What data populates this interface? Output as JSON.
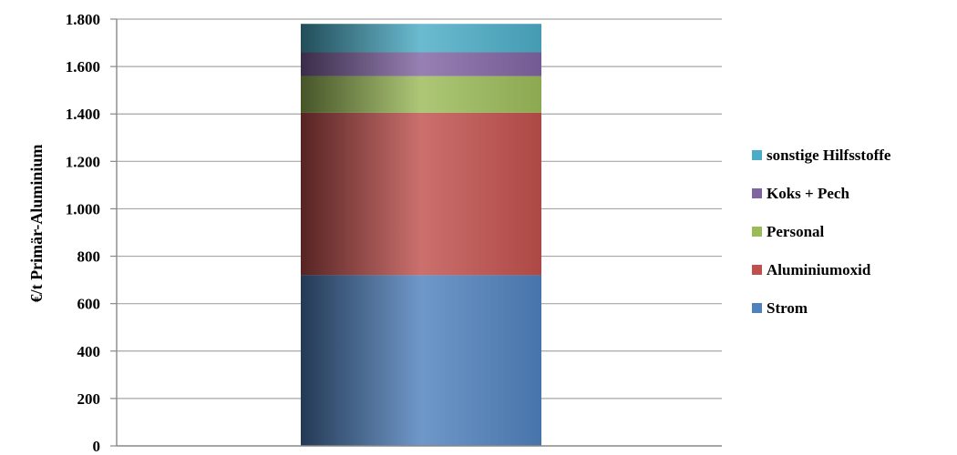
{
  "chart_data": {
    "type": "bar",
    "stacked": true,
    "title": "",
    "xlabel": "",
    "ylabel": "€/t Primär-Aluminium",
    "ylim": [
      0,
      1800
    ],
    "yticks": [
      0,
      200,
      400,
      600,
      800,
      1000,
      1200,
      1400,
      1600,
      1800
    ],
    "ytick_labels": [
      "0",
      "200",
      "400",
      "600",
      "800",
      "1.000",
      "1.200",
      "1.400",
      "1.600",
      "1.800"
    ],
    "grid": true,
    "legend_position": "right",
    "categories": [
      ""
    ],
    "series": [
      {
        "name": "Strom",
        "values": [
          720
        ],
        "color": "#4f81bd"
      },
      {
        "name": "Aluminiumoxid",
        "values": [
          685
        ],
        "color": "#c0504d"
      },
      {
        "name": "Personal",
        "values": [
          155
        ],
        "color": "#9bbb59"
      },
      {
        "name": "Koks + Pech",
        "values": [
          100
        ],
        "color": "#8064a2"
      },
      {
        "name": "sonstige Hilfsstoffe",
        "values": [
          120
        ],
        "color": "#4bacc6"
      }
    ]
  }
}
